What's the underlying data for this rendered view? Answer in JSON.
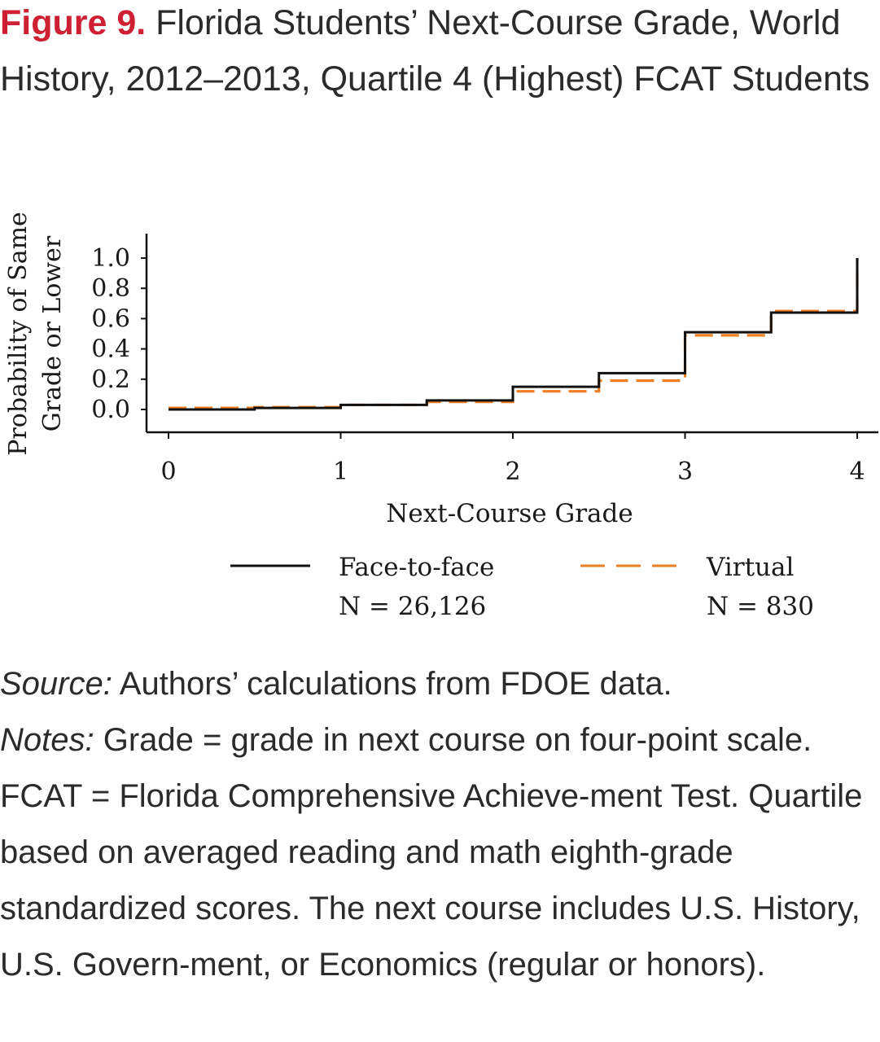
{
  "figure": {
    "label": "Figure 9.",
    "title": "Florida Students’ Next-Course Grade, World History, 2012–2013, Quartile 4 (Highest) FCAT Students"
  },
  "chart_data": {
    "type": "line",
    "step": true,
    "title": "",
    "xlabel": "Next-Course Grade",
    "ylabel": "Probability of Same Grade or Lower",
    "ylabel_lines": [
      "Probability of Same",
      "Grade or Lower"
    ],
    "xlim": [
      0,
      4
    ],
    "ylim": [
      0,
      1
    ],
    "x_ticks": [
      "0",
      "1",
      "2",
      "3",
      "4"
    ],
    "y_ticks": [
      "0.0",
      "0.2",
      "0.4",
      "0.6",
      "0.8",
      "1.0"
    ],
    "grid": false,
    "legend_position": "bottom",
    "series": [
      {
        "name": "Face-to-face",
        "n_label": "N = 26,126",
        "color": "#111111",
        "style": "solid",
        "x": [
          0,
          0.5,
          1,
          1.5,
          2,
          2.5,
          3,
          3.5,
          4
        ],
        "y": [
          0.0,
          0.01,
          0.03,
          0.06,
          0.15,
          0.24,
          0.51,
          0.64,
          1.0
        ]
      },
      {
        "name": "Virtual",
        "n_label": "N = 830",
        "color": "#ef7d22",
        "style": "dashed",
        "x": [
          0,
          0.5,
          1,
          1.5,
          2,
          2.5,
          3,
          3.5,
          4
        ],
        "y": [
          0.01,
          0.015,
          0.03,
          0.05,
          0.12,
          0.19,
          0.49,
          0.65,
          1.0
        ]
      }
    ]
  },
  "notes": {
    "source_label": "Source:",
    "source_text": " Authors’ calculations from FDOE data.",
    "notes_label": "Notes:",
    "notes_text": " Grade = grade in next course on four-point scale. FCAT = Florida Comprehensive Achieve-ment Test. Quartile based on averaged reading and math eighth-grade standardized scores. The next course includes U.S. History, U.S. Govern-ment, or Economics (regular or honors)."
  }
}
